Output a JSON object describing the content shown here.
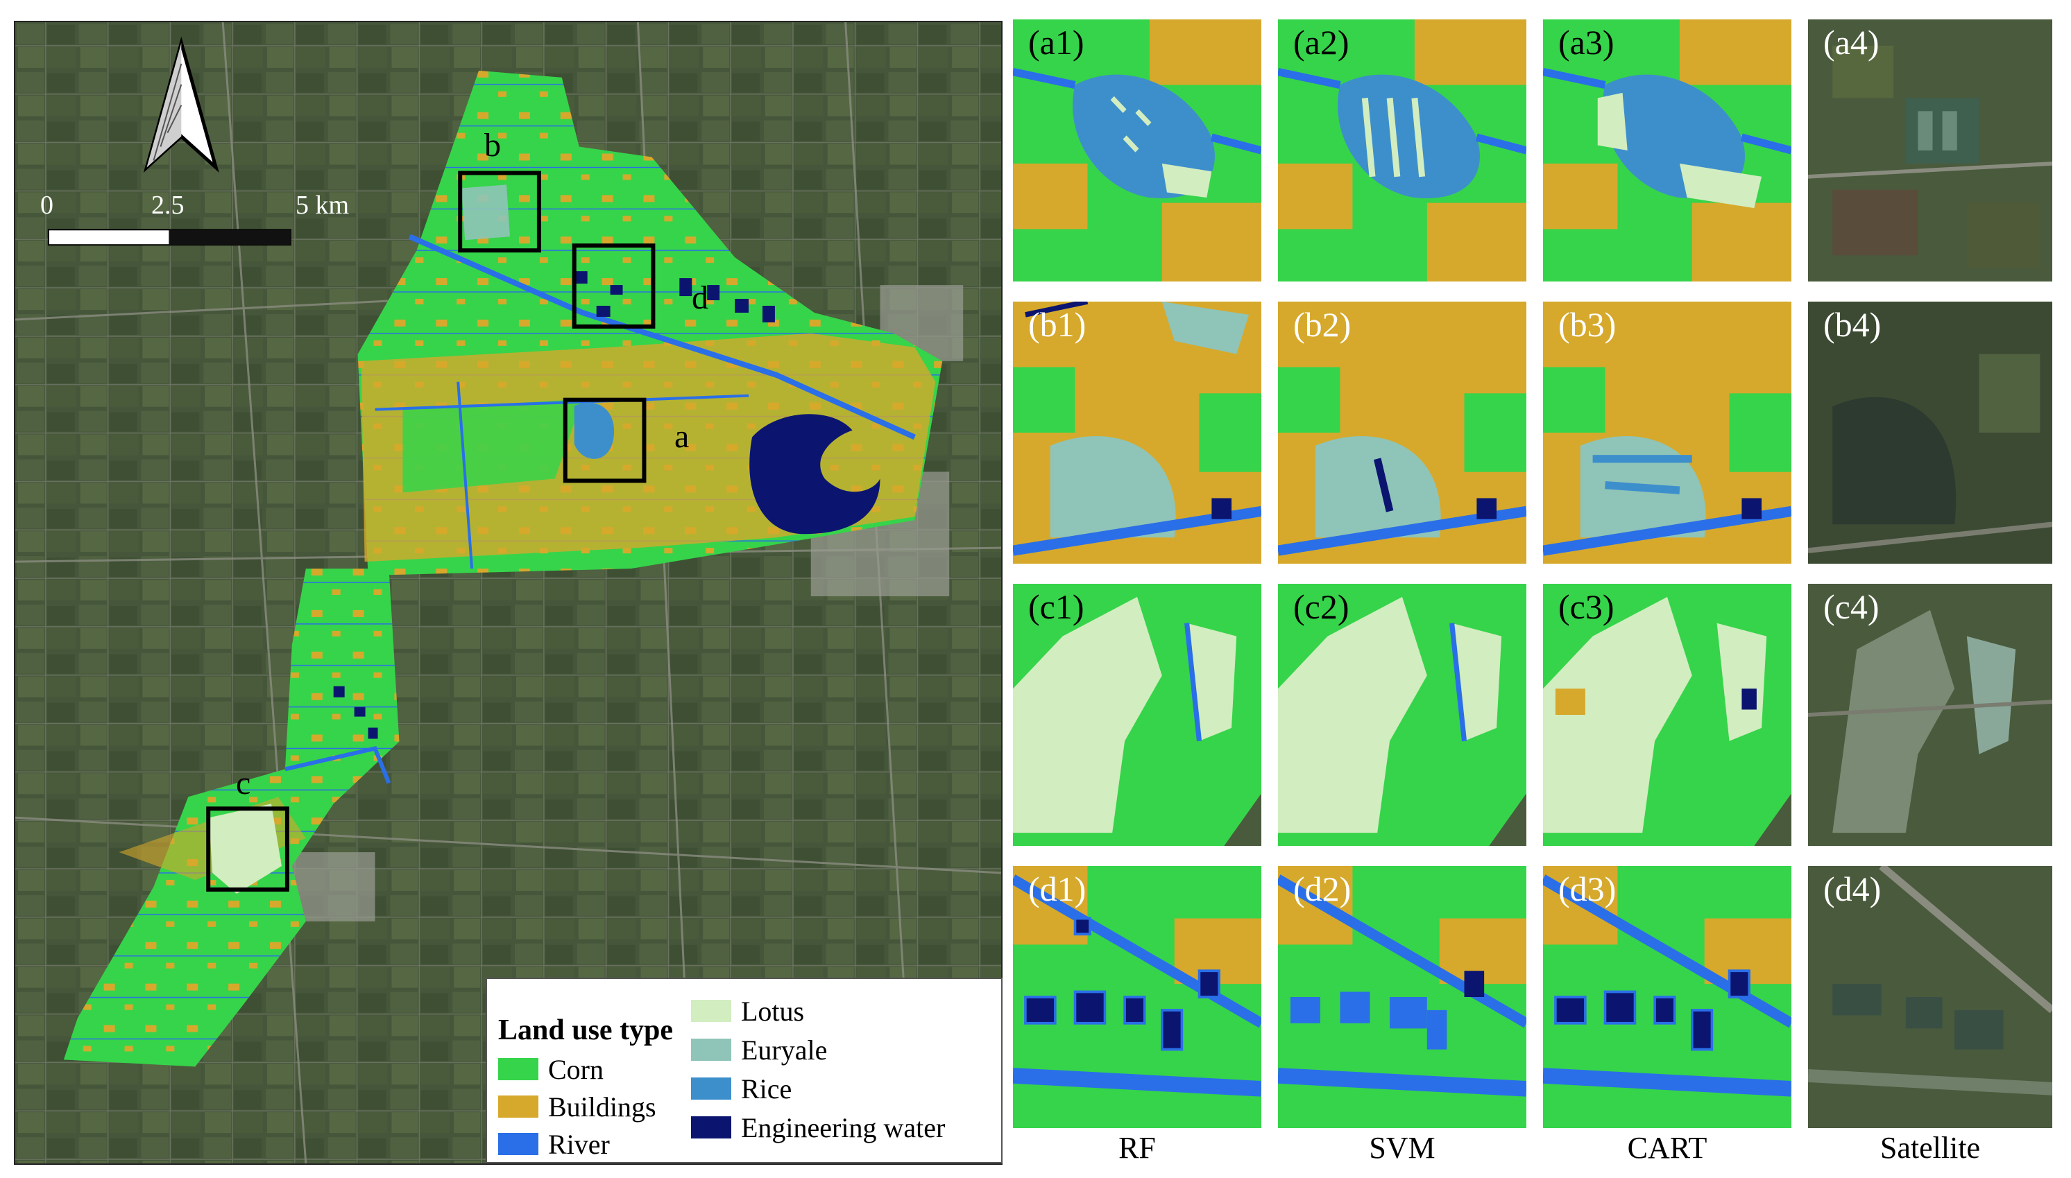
{
  "overview": {
    "zoom_labels": [
      "b",
      "d",
      "a",
      "c"
    ],
    "scale_bar": {
      "ticks": [
        "0",
        "2.5",
        "5 km"
      ]
    },
    "north_arrow": "north-arrow-icon"
  },
  "legend": {
    "title": "Land use type",
    "items": [
      {
        "label": "Corn",
        "color": "#36d44a"
      },
      {
        "label": "Buildings",
        "color": "#d6a92c"
      },
      {
        "label": "River",
        "color": "#2a6fe8"
      },
      {
        "label": "Lotus",
        "color": "#d2edc0"
      },
      {
        "label": "Euryale",
        "color": "#8fc4b8"
      },
      {
        "label": "Rice",
        "color": "#3d8fcc"
      },
      {
        "label": "Engineering water",
        "color": "#0b1570"
      }
    ]
  },
  "columns": [
    "RF",
    "SVM",
    "CART",
    "Satellite"
  ],
  "panels": [
    [
      "(a1)",
      "(a2)",
      "(a3)",
      "(a4)"
    ],
    [
      "(b1)",
      "(b2)",
      "(b3)",
      "(b4)"
    ],
    [
      "(c1)",
      "(c2)",
      "(c3)",
      "(c4)"
    ],
    [
      "(d1)",
      "(d2)",
      "(d3)",
      "(d4)"
    ]
  ]
}
